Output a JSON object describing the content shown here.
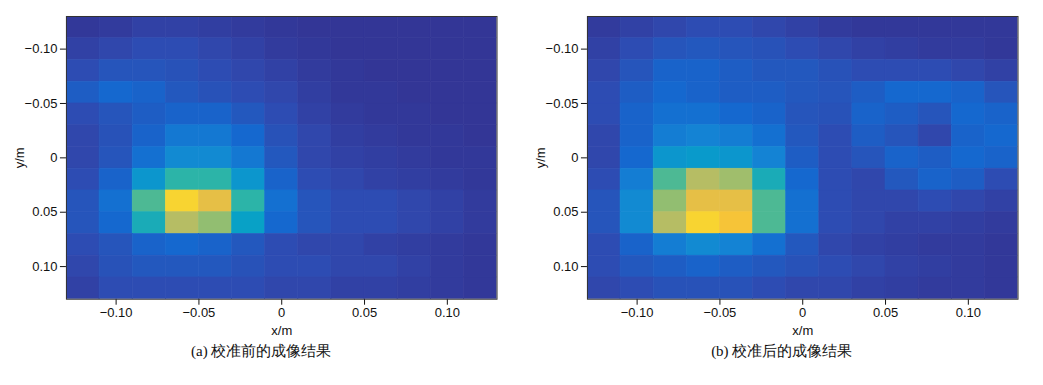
{
  "chart_data": [
    {
      "type": "heatmap",
      "title": "(a) 校准前的成像结果",
      "xlabel": "x/m",
      "ylabel": "y/m",
      "xlim": [
        -0.13,
        0.13
      ],
      "ylim": [
        -0.13,
        0.13
      ],
      "zlim": [
        0,
        1
      ],
      "grid": false,
      "xticks": [
        {
          "value": -0.1,
          "label": "−0.10"
        },
        {
          "value": -0.05,
          "label": "−0.05"
        },
        0,
        0.05,
        {
          "value": 0.1,
          "label": "0.10"
        }
      ],
      "yticks": [
        {
          "value": -0.1,
          "label": "−0.10"
        },
        {
          "value": -0.05,
          "label": "−0.05"
        },
        0,
        0.05,
        {
          "value": 0.1,
          "label": "0.10"
        }
      ],
      "x": [
        -0.12,
        -0.1,
        -0.08,
        -0.06,
        -0.04,
        -0.02,
        0,
        0.02,
        0.04,
        0.06,
        0.08,
        0.1,
        0.12
      ],
      "y": [
        -0.12,
        -0.1,
        -0.08,
        -0.06,
        -0.04,
        -0.02,
        0,
        0.02,
        0.04,
        0.06,
        0.08,
        0.1,
        0.12
      ],
      "z": [
        [
          0.05,
          0.06,
          0.08,
          0.08,
          0.07,
          0.06,
          0.05,
          0.04,
          0.04,
          0.04,
          0.04,
          0.04,
          0.04
        ],
        [
          0.08,
          0.1,
          0.12,
          0.12,
          0.1,
          0.08,
          0.06,
          0.05,
          0.04,
          0.04,
          0.04,
          0.04,
          0.04
        ],
        [
          0.12,
          0.15,
          0.15,
          0.14,
          0.12,
          0.1,
          0.08,
          0.06,
          0.05,
          0.04,
          0.04,
          0.04,
          0.04
        ],
        [
          0.18,
          0.22,
          0.2,
          0.16,
          0.14,
          0.12,
          0.1,
          0.07,
          0.05,
          0.05,
          0.04,
          0.04,
          0.04
        ],
        [
          0.12,
          0.15,
          0.18,
          0.2,
          0.2,
          0.16,
          0.12,
          0.08,
          0.06,
          0.05,
          0.05,
          0.04,
          0.04
        ],
        [
          0.1,
          0.14,
          0.2,
          0.28,
          0.28,
          0.22,
          0.14,
          0.1,
          0.07,
          0.06,
          0.05,
          0.05,
          0.04
        ],
        [
          0.1,
          0.15,
          0.25,
          0.35,
          0.35,
          0.28,
          0.16,
          0.1,
          0.08,
          0.07,
          0.06,
          0.05,
          0.05
        ],
        [
          0.12,
          0.2,
          0.4,
          0.55,
          0.55,
          0.4,
          0.2,
          0.12,
          0.1,
          0.08,
          0.07,
          0.06,
          0.05
        ],
        [
          0.15,
          0.25,
          0.6,
          0.95,
          0.85,
          0.55,
          0.25,
          0.15,
          0.12,
          0.12,
          0.1,
          0.08,
          0.06
        ],
        [
          0.15,
          0.22,
          0.5,
          0.75,
          0.7,
          0.45,
          0.22,
          0.15,
          0.12,
          0.12,
          0.1,
          0.08,
          0.06
        ],
        [
          0.12,
          0.15,
          0.2,
          0.22,
          0.2,
          0.16,
          0.12,
          0.1,
          0.1,
          0.08,
          0.07,
          0.06,
          0.05
        ],
        [
          0.1,
          0.14,
          0.16,
          0.16,
          0.16,
          0.14,
          0.12,
          0.12,
          0.1,
          0.1,
          0.08,
          0.06,
          0.05
        ],
        [
          0.08,
          0.12,
          0.12,
          0.12,
          0.12,
          0.12,
          0.1,
          0.1,
          0.08,
          0.08,
          0.07,
          0.06,
          0.05
        ]
      ]
    },
    {
      "type": "heatmap",
      "title": "(b) 校准后的成像结果",
      "xlabel": "x/m",
      "ylabel": "y/m",
      "xlim": [
        -0.13,
        0.13
      ],
      "ylim": [
        -0.13,
        0.13
      ],
      "zlim": [
        0,
        1
      ],
      "grid": false,
      "xticks": [
        {
          "value": -0.1,
          "label": "−0.10"
        },
        {
          "value": -0.05,
          "label": "−0.05"
        },
        0,
        0.05,
        {
          "value": 0.1,
          "label": "0.10"
        }
      ],
      "yticks": [
        {
          "value": -0.1,
          "label": "−0.10"
        },
        {
          "value": -0.05,
          "label": "−0.05"
        },
        0,
        0.05,
        {
          "value": 0.1,
          "label": "0.10"
        }
      ],
      "x": [
        -0.12,
        -0.1,
        -0.08,
        -0.06,
        -0.04,
        -0.02,
        0,
        0.02,
        0.04,
        0.06,
        0.08,
        0.1,
        0.12
      ],
      "y": [
        -0.12,
        -0.1,
        -0.08,
        -0.06,
        -0.04,
        -0.02,
        0,
        0.02,
        0.04,
        0.06,
        0.08,
        0.1,
        0.12
      ],
      "z": [
        [
          0.06,
          0.08,
          0.1,
          0.12,
          0.12,
          0.1,
          0.08,
          0.06,
          0.05,
          0.05,
          0.05,
          0.05,
          0.05
        ],
        [
          0.08,
          0.12,
          0.15,
          0.16,
          0.15,
          0.14,
          0.12,
          0.1,
          0.08,
          0.07,
          0.06,
          0.06,
          0.05
        ],
        [
          0.1,
          0.15,
          0.2,
          0.2,
          0.18,
          0.16,
          0.16,
          0.14,
          0.12,
          0.12,
          0.12,
          0.1,
          0.08
        ],
        [
          0.12,
          0.18,
          0.22,
          0.2,
          0.18,
          0.18,
          0.16,
          0.15,
          0.18,
          0.22,
          0.22,
          0.2,
          0.15
        ],
        [
          0.12,
          0.2,
          0.25,
          0.25,
          0.22,
          0.2,
          0.15,
          0.14,
          0.2,
          0.18,
          0.15,
          0.22,
          0.2
        ],
        [
          0.1,
          0.2,
          0.3,
          0.32,
          0.3,
          0.25,
          0.16,
          0.12,
          0.18,
          0.15,
          0.1,
          0.2,
          0.22
        ],
        [
          0.1,
          0.22,
          0.4,
          0.42,
          0.4,
          0.32,
          0.18,
          0.12,
          0.15,
          0.2,
          0.18,
          0.22,
          0.2
        ],
        [
          0.12,
          0.3,
          0.6,
          0.75,
          0.72,
          0.5,
          0.22,
          0.12,
          0.1,
          0.16,
          0.2,
          0.18,
          0.12
        ],
        [
          0.15,
          0.35,
          0.7,
          0.85,
          0.85,
          0.6,
          0.25,
          0.12,
          0.1,
          0.1,
          0.12,
          0.1,
          0.08
        ],
        [
          0.15,
          0.35,
          0.75,
          0.95,
          0.9,
          0.6,
          0.25,
          0.12,
          0.1,
          0.08,
          0.08,
          0.07,
          0.06
        ],
        [
          0.12,
          0.2,
          0.3,
          0.35,
          0.32,
          0.25,
          0.16,
          0.1,
          0.08,
          0.07,
          0.06,
          0.06,
          0.05
        ],
        [
          0.12,
          0.16,
          0.18,
          0.2,
          0.18,
          0.16,
          0.14,
          0.12,
          0.1,
          0.08,
          0.07,
          0.06,
          0.05
        ],
        [
          0.1,
          0.12,
          0.14,
          0.14,
          0.14,
          0.12,
          0.1,
          0.1,
          0.08,
          0.07,
          0.06,
          0.06,
          0.05
        ]
      ]
    }
  ]
}
